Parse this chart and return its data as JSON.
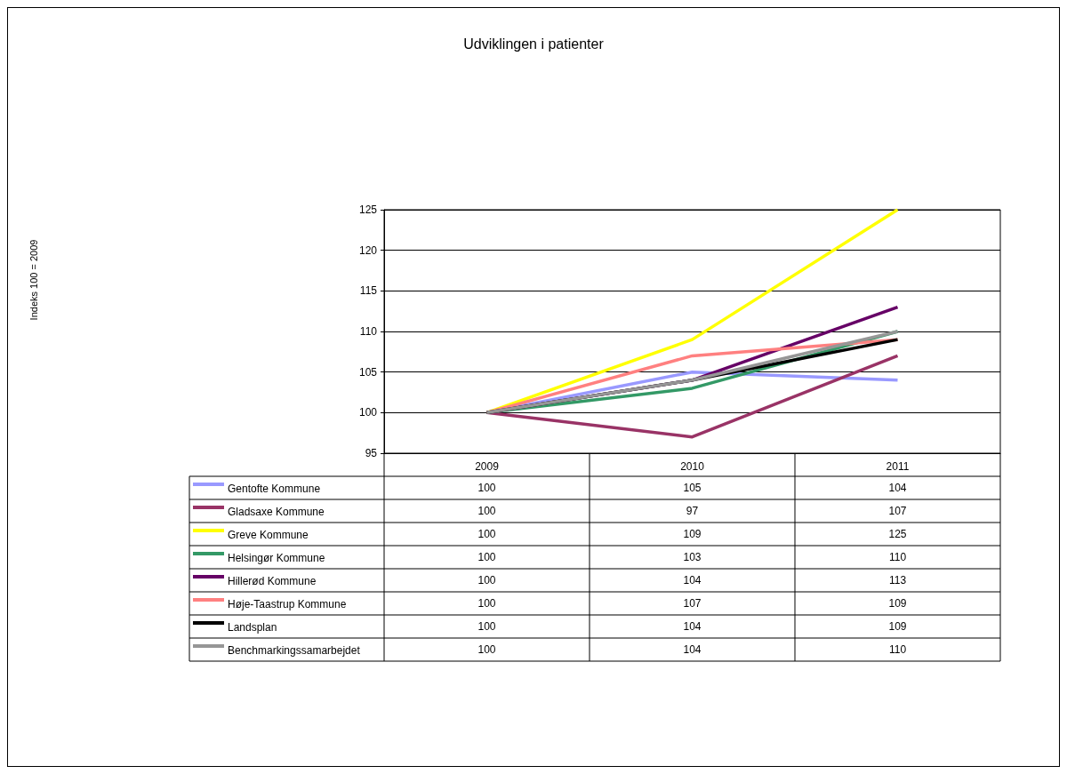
{
  "chart_data": {
    "type": "line",
    "title": "Udviklingen i patienter",
    "annotations": [
      "Indeks 100 = 2009"
    ],
    "categories": [
      "2009",
      "2010",
      "2011"
    ],
    "series": [
      {
        "name": "Gentofte Kommune",
        "color": "#9999ff",
        "values": [
          100,
          105,
          104
        ]
      },
      {
        "name": "Gladsaxe Kommune",
        "color": "#993366",
        "values": [
          100,
          97,
          107
        ]
      },
      {
        "name": "Greve Kommune",
        "color": "#ffff00",
        "values": [
          100,
          109,
          125
        ]
      },
      {
        "name": "Helsingør Kommune",
        "color": "#339966",
        "values": [
          100,
          103,
          110
        ]
      },
      {
        "name": "Hillerød Kommune",
        "color": "#660066",
        "values": [
          100,
          104,
          113
        ]
      },
      {
        "name": "Høje-Taastrup Kommune",
        "color": "#ff8080",
        "values": [
          100,
          107,
          109
        ]
      },
      {
        "name": "Landsplan",
        "color": "#000000",
        "values": [
          100,
          104,
          109
        ]
      },
      {
        "name": "Benchmarkingssamarbejdet",
        "color": "#969696",
        "values": [
          100,
          104,
          110
        ]
      }
    ],
    "ylim": [
      95,
      125
    ],
    "yticks": [
      95,
      100,
      105,
      110,
      115,
      120,
      125
    ],
    "grid": "y",
    "legend": "bottom",
    "marker": "none",
    "line_style": "solid",
    "data_labels": true
  }
}
